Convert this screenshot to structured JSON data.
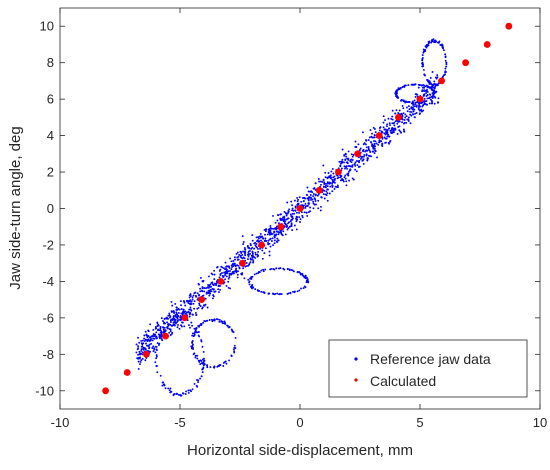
{
  "chart_data": {
    "type": "scatter",
    "xlabel": "Horizontal side-displacement, mm",
    "ylabel": "Jaw side-turn angle, deg",
    "xlim": [
      -10,
      10
    ],
    "ylim": [
      -11,
      11
    ],
    "x_ticks": [
      -10,
      -5,
      0,
      5,
      10
    ],
    "y_ticks": [
      -10,
      -8,
      -6,
      -4,
      -2,
      0,
      2,
      4,
      6,
      8,
      10
    ],
    "grid": false,
    "legend_position": "bottom-right",
    "series": [
      {
        "name": "Reference jaw data",
        "marker": "dot",
        "color": "#0000ff",
        "trend": {
          "slope": 1.17,
          "intercept": 0.0,
          "x_range": [
            -6.8,
            5.8
          ]
        },
        "loops": [
          {
            "cx": -5.0,
            "cy": -8.2,
            "rx": 1.0,
            "ry": 2.0
          },
          {
            "cx": -3.6,
            "cy": -7.4,
            "rx": 0.9,
            "ry": 1.3
          },
          {
            "cx": -0.9,
            "cy": -4.0,
            "rx": 1.2,
            "ry": 0.7
          },
          {
            "cx": 5.6,
            "cy": 8.0,
            "rx": 0.5,
            "ry": 1.2
          },
          {
            "cx": 4.8,
            "cy": 6.3,
            "rx": 0.8,
            "ry": 0.5
          }
        ]
      },
      {
        "name": "Calculated",
        "marker": "circle",
        "color": "#ff0000",
        "points": [
          [
            -8.1,
            -10
          ],
          [
            -7.2,
            -9
          ],
          [
            -6.4,
            -8
          ],
          [
            -5.6,
            -7
          ],
          [
            -4.8,
            -6
          ],
          [
            -4.1,
            -5
          ],
          [
            -3.3,
            -4
          ],
          [
            -2.4,
            -3
          ],
          [
            -1.6,
            -2
          ],
          [
            -0.8,
            -1
          ],
          [
            0.0,
            0
          ],
          [
            0.8,
            1
          ],
          [
            1.6,
            2
          ],
          [
            2.4,
            3
          ],
          [
            3.3,
            4
          ],
          [
            4.1,
            5
          ],
          [
            5.0,
            6
          ],
          [
            5.9,
            7
          ],
          [
            6.9,
            8
          ],
          [
            7.8,
            9
          ],
          [
            8.7,
            10
          ]
        ]
      }
    ]
  }
}
